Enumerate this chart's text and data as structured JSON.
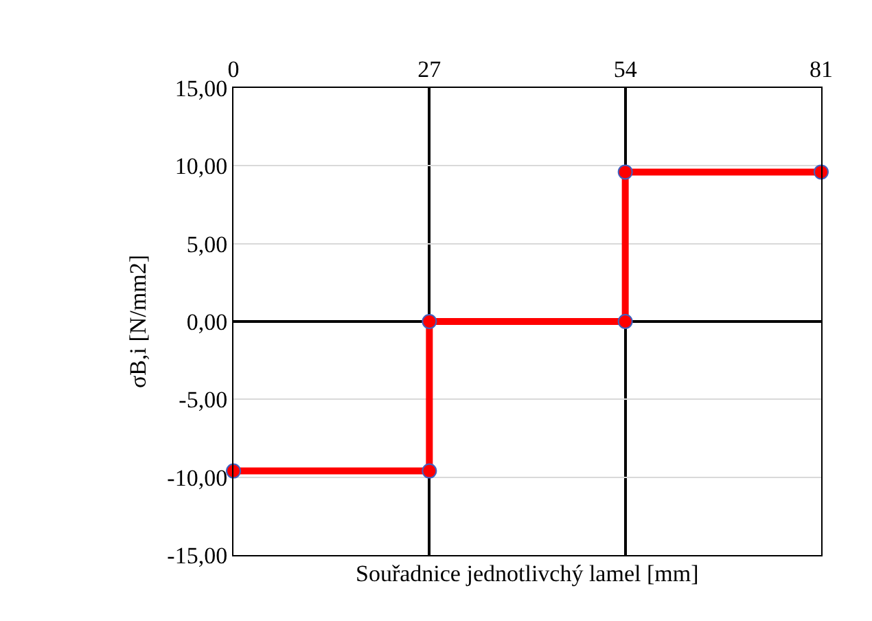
{
  "chart_data": {
    "type": "line",
    "xlabel": "Souřadnice jednotlivchý lamel [mm]",
    "ylabel": "σB,i [N/mm2]",
    "x": [
      0,
      27,
      27,
      54,
      54,
      81
    ],
    "series": [
      {
        "color": "#ff0000",
        "values": [
          -9.6,
          -9.6,
          0,
          0,
          9.6,
          9.6
        ]
      }
    ],
    "xlim": [
      0,
      81
    ],
    "xticks": [
      0,
      27,
      54,
      81
    ],
    "ylim": [
      -15,
      15
    ],
    "yticks": [
      {
        "value": -15,
        "label": "-15,00"
      },
      {
        "value": -10,
        "label": "-10,00"
      },
      {
        "value": -5,
        "label": "-5,00"
      },
      {
        "value": 0,
        "label": "0,00"
      },
      {
        "value": 5,
        "label": "5,00"
      },
      {
        "value": 10,
        "label": "10,00"
      },
      {
        "value": 15,
        "label": "15,00"
      }
    ],
    "grid": true,
    "marker": "circle",
    "line_style": "solid"
  }
}
